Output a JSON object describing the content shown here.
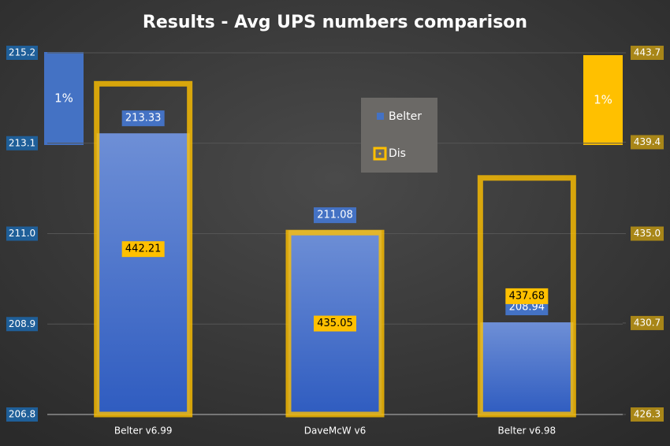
{
  "chart_data": {
    "type": "bar",
    "title": "Results - Avg UPS numbers comparison",
    "categories": [
      "Belter v6.99",
      "DaveMcW v6",
      "Belter v6.98"
    ],
    "series": [
      {
        "name": "Belter",
        "color": "#4472c4",
        "values": [
          213.33,
          211.08,
          208.94
        ]
      },
      {
        "name": "Dis",
        "color": "#ffc000",
        "axis": "y2",
        "values": [
          442.21,
          435.05,
          437.68
        ]
      }
    ],
    "ylim": [
      206.8,
      215.2
    ],
    "yticks": [
      206.8,
      208.9,
      {
        "value": 211,
        "label": "211.0"
      },
      213.1,
      215.2
    ],
    "y2lim": [
      426.3,
      443.7
    ],
    "y2ticks": [
      426.3,
      430.7,
      {
        "value": 435,
        "label": "435.0"
      },
      439.4,
      443.7
    ],
    "grid": true,
    "annotations": [
      "1%",
      "1%"
    ]
  }
}
